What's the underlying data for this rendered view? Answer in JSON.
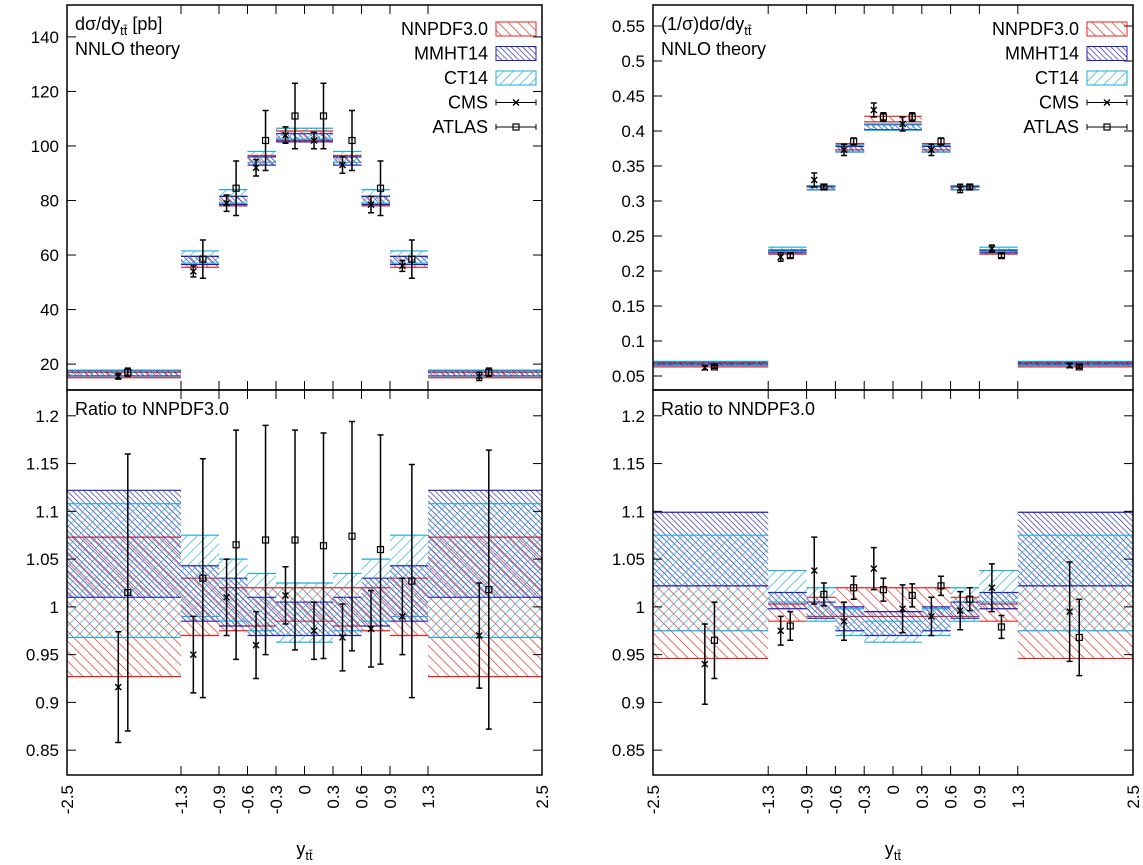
{
  "chart_data": [
    {
      "type": "binned",
      "title": "dσ/dy",
      "title_sub": "tt̄",
      "title_suffix": " [pb]",
      "subtitle": "NNLO theory",
      "bins": [
        -2.5,
        -1.3,
        -0.9,
        -0.6,
        -0.3,
        0,
        0.3,
        0.6,
        0.9,
        1.3,
        2.5
      ],
      "xlim": [
        -2.5,
        2.5
      ],
      "ylim": [
        10.5,
        151.7
      ],
      "yticks": [
        20,
        40,
        60,
        80,
        100,
        120,
        140
      ],
      "legend": "upper right",
      "bands": [
        {
          "name": "NNPDF3.0",
          "color": "#e8231b",
          "low": [
            15,
            55.5,
            78,
            93,
            102,
            102,
            93,
            78,
            55.5,
            15
          ],
          "high": [
            17,
            59.5,
            81.5,
            96.5,
            105.5,
            105.5,
            96.5,
            81.5,
            59.5,
            17
          ]
        },
        {
          "name": "MMHT14",
          "color": "#2020b8",
          "low": [
            15.7,
            56.5,
            78.5,
            93,
            101.5,
            101.5,
            93,
            78.5,
            56.5,
            15.7
          ],
          "high": [
            17.6,
            59.5,
            81.5,
            96,
            104.5,
            104.5,
            96,
            81.5,
            59.5,
            17.6
          ]
        },
        {
          "name": "CT14",
          "color": "#1aaee0",
          "low": [
            15.5,
            57,
            79,
            94,
            102.5,
            102.5,
            94,
            79,
            57,
            15.5
          ],
          "high": [
            17.8,
            61.5,
            84,
            98,
            106.5,
            106.5,
            98,
            84,
            61.5,
            17.8
          ]
        }
      ],
      "series": [
        {
          "name": "CMS",
          "marker": "x",
          "color": "#000000",
          "x": [
            -1.96,
            -1.17,
            -0.82,
            -0.51,
            -0.2,
            0.1,
            0.4,
            0.7,
            1.03,
            1.84
          ],
          "values": [
            15.5,
            54,
            79,
            92,
            104,
            102,
            93,
            78.5,
            56,
            15.5
          ],
          "errors": [
            1,
            2,
            3,
            3,
            3,
            3,
            3,
            3,
            2,
            1.5
          ]
        },
        {
          "name": "ATLAS",
          "marker": "square",
          "color": "#000000",
          "x": [
            -1.86,
            -1.07,
            -0.72,
            -0.41,
            -0.1,
            0.2,
            0.5,
            0.8,
            1.13,
            1.94
          ],
          "values": [
            17,
            58.5,
            84.5,
            102,
            111,
            111,
            102,
            84.5,
            58.5,
            17
          ],
          "errors": [
            1.5,
            7,
            10,
            11,
            12,
            12,
            11,
            10,
            7,
            1.5
          ]
        }
      ]
    },
    {
      "type": "binned",
      "title": "Ratio to NNPDF3.0",
      "bins": [
        -2.5,
        -1.3,
        -0.9,
        -0.6,
        -0.3,
        0,
        0.3,
        0.6,
        0.9,
        1.3,
        2.5
      ],
      "xlim": [
        -2.5,
        2.5
      ],
      "xticks": [
        -2.5,
        -1.3,
        -0.9,
        -0.6,
        -0.3,
        0,
        0.3,
        0.6,
        0.9,
        1.3,
        2.5
      ],
      "xlabel": "y",
      "xlabel_sub": "tt̄",
      "ylim": [
        0.824,
        1.227
      ],
      "yticks": [
        0.85,
        0.9,
        0.95,
        1,
        1.05,
        1.1,
        1.15,
        1.2
      ],
      "bands": [
        {
          "color": "#e8231b",
          "low": [
            0.927,
            0.97,
            0.975,
            0.98,
            0.985,
            0.985,
            0.98,
            0.975,
            0.97,
            0.927
          ],
          "high": [
            1.073,
            1.03,
            1.02,
            1.02,
            1.02,
            1.02,
            1.02,
            1.02,
            1.03,
            1.073
          ]
        },
        {
          "color": "#2020b8",
          "low": [
            1.01,
            0.985,
            0.98,
            0.97,
            0.97,
            0.97,
            0.97,
            0.98,
            0.985,
            1.01
          ],
          "high": [
            1.122,
            1.043,
            1.03,
            1.01,
            1.005,
            1.005,
            1.01,
            1.03,
            1.043,
            1.122
          ]
        },
        {
          "color": "#1aaee0",
          "low": [
            0.968,
            0.99,
            0.985,
            0.975,
            0.963,
            0.963,
            0.975,
            0.985,
            0.99,
            0.968
          ],
          "high": [
            1.108,
            1.075,
            1.05,
            1.035,
            1.025,
            1.025,
            1.035,
            1.05,
            1.075,
            1.108
          ]
        }
      ],
      "series": [
        {
          "marker": "x",
          "color": "#000000",
          "x": [
            -1.96,
            -1.17,
            -0.82,
            -0.51,
            -0.2,
            0.1,
            0.4,
            0.7,
            1.03,
            1.84
          ],
          "values": [
            0.916,
            0.95,
            1.01,
            0.96,
            1.012,
            0.975,
            0.968,
            0.977,
            0.99,
            0.97
          ],
          "errors": [
            0.058,
            0.04,
            0.04,
            0.035,
            0.03,
            0.03,
            0.035,
            0.04,
            0.04,
            0.055
          ]
        },
        {
          "marker": "square",
          "color": "#000000",
          "x": [
            -1.86,
            -1.07,
            -0.72,
            -0.41,
            -0.1,
            0.2,
            0.5,
            0.8,
            1.13,
            1.94
          ],
          "values": [
            1.015,
            1.03,
            1.065,
            1.07,
            1.07,
            1.064,
            1.074,
            1.06,
            1.027,
            1.018
          ],
          "errors": [
            0.145,
            0.125,
            0.12,
            0.12,
            0.115,
            0.118,
            0.12,
            0.12,
            0.122,
            0.146
          ]
        }
      ]
    },
    {
      "type": "binned",
      "title": "(1/σ)dσ/dy",
      "title_sub": "tt̄",
      "subtitle": "NNLO theory",
      "bins": [
        -2.5,
        -1.3,
        -0.9,
        -0.6,
        -0.3,
        0,
        0.3,
        0.6,
        0.9,
        1.3,
        2.5
      ],
      "xlim": [
        -2.5,
        2.5
      ],
      "ylim": [
        0.03,
        0.58
      ],
      "yticks": [
        0.05,
        0.1,
        0.15,
        0.2,
        0.25,
        0.3,
        0.35,
        0.4,
        0.45,
        0.5,
        0.55
      ],
      "legend": "upper right",
      "bands": [
        {
          "name": "NNPDF3.0",
          "color": "#e8231b",
          "low": [
            0.063,
            0.224,
            0.316,
            0.373,
            0.413,
            0.413,
            0.373,
            0.316,
            0.224,
            0.063
          ],
          "high": [
            0.068,
            0.229,
            0.32,
            0.382,
            0.421,
            0.421,
            0.382,
            0.32,
            0.229,
            0.068
          ]
        },
        {
          "name": "MMHT14",
          "color": "#2020b8",
          "low": [
            0.066,
            0.226,
            0.316,
            0.37,
            0.402,
            0.402,
            0.37,
            0.316,
            0.226,
            0.066
          ],
          "high": [
            0.07,
            0.23,
            0.321,
            0.378,
            0.409,
            0.409,
            0.378,
            0.321,
            0.23,
            0.07
          ]
        },
        {
          "name": "CT14",
          "color": "#1aaee0",
          "low": [
            0.065,
            0.228,
            0.316,
            0.37,
            0.401,
            0.401,
            0.37,
            0.316,
            0.228,
            0.065
          ],
          "high": [
            0.071,
            0.234,
            0.322,
            0.38,
            0.41,
            0.41,
            0.38,
            0.322,
            0.234,
            0.071
          ]
        }
      ],
      "series": [
        {
          "name": "CMS",
          "marker": "x",
          "color": "#000000",
          "x": [
            -1.96,
            -1.17,
            -0.82,
            -0.51,
            -0.2,
            0.1,
            0.4,
            0.7,
            1.03,
            1.84
          ],
          "values": [
            0.062,
            0.22,
            0.33,
            0.373,
            0.43,
            0.41,
            0.373,
            0.318,
            0.232,
            0.065
          ],
          "errors": [
            0.003,
            0.006,
            0.01,
            0.008,
            0.01,
            0.01,
            0.008,
            0.006,
            0.005,
            0.003
          ]
        },
        {
          "name": "ATLAS",
          "marker": "square",
          "color": "#000000",
          "x": [
            -1.86,
            -1.07,
            -0.72,
            -0.41,
            -0.1,
            0.2,
            0.5,
            0.8,
            1.13,
            1.94
          ],
          "values": [
            0.063,
            0.222,
            0.32,
            0.385,
            0.42,
            0.42,
            0.385,
            0.32,
            0.222,
            0.063
          ],
          "errors": [
            0.002,
            0.003,
            0.003,
            0.005,
            0.006,
            0.006,
            0.005,
            0.003,
            0.003,
            0.002
          ]
        }
      ]
    },
    {
      "type": "binned",
      "title": "Ratio to NNDPF3.0",
      "bins": [
        -2.5,
        -1.3,
        -0.9,
        -0.6,
        -0.3,
        0,
        0.3,
        0.6,
        0.9,
        1.3,
        2.5
      ],
      "xlim": [
        -2.5,
        2.5
      ],
      "xticks": [
        -2.5,
        -1.3,
        -0.9,
        -0.6,
        -0.3,
        0,
        0.3,
        0.6,
        0.9,
        1.3,
        2.5
      ],
      "xlabel": "y",
      "xlabel_sub": "tt̄",
      "ylim": [
        0.824,
        1.227
      ],
      "yticks": [
        0.85,
        0.9,
        0.95,
        1,
        1.05,
        1.1,
        1.15,
        1.2
      ],
      "bands": [
        {
          "color": "#e8231b",
          "low": [
            0.946,
            0.985,
            0.99,
            0.99,
            0.99,
            0.99,
            0.99,
            0.99,
            0.985,
            0.946
          ],
          "high": [
            1.022,
            1.003,
            1.01,
            1.02,
            1.02,
            1.02,
            1.02,
            1.01,
            1.003,
            1.022
          ]
        },
        {
          "color": "#2020b8",
          "low": [
            1.022,
            0.998,
            0.988,
            0.975,
            0.97,
            0.97,
            0.975,
            0.988,
            0.998,
            1.022
          ],
          "high": [
            1.099,
            1.015,
            1.005,
            1.0,
            0.995,
            0.995,
            1.0,
            1.005,
            1.015,
            1.099
          ]
        },
        {
          "color": "#1aaee0",
          "low": [
            0.975,
            1.005,
            0.985,
            0.97,
            0.963,
            0.963,
            0.97,
            0.985,
            1.005,
            0.975
          ],
          "high": [
            1.075,
            1.038,
            1.02,
            0.998,
            0.985,
            0.985,
            0.998,
            1.02,
            1.038,
            1.075
          ]
        }
      ],
      "series": [
        {
          "marker": "x",
          "color": "#000000",
          "x": [
            -1.96,
            -1.17,
            -0.82,
            -0.51,
            -0.2,
            0.1,
            0.4,
            0.7,
            1.03,
            1.84
          ],
          "values": [
            0.94,
            0.975,
            1.038,
            0.985,
            1.04,
            0.998,
            0.99,
            0.996,
            1.02,
            0.995
          ],
          "errors": [
            0.042,
            0.015,
            0.035,
            0.02,
            0.022,
            0.025,
            0.02,
            0.02,
            0.025,
            0.052
          ]
        },
        {
          "marker": "square",
          "color": "#000000",
          "x": [
            -1.86,
            -1.07,
            -0.72,
            -0.41,
            -0.1,
            0.2,
            0.5,
            0.8,
            1.13,
            1.94
          ],
          "values": [
            0.965,
            0.98,
            1.013,
            1.02,
            1.018,
            1.012,
            1.022,
            1.008,
            0.979,
            0.968
          ],
          "errors": [
            0.04,
            0.015,
            0.012,
            0.012,
            0.012,
            0.012,
            0.01,
            0.012,
            0.012,
            0.04
          ]
        }
      ]
    }
  ]
}
